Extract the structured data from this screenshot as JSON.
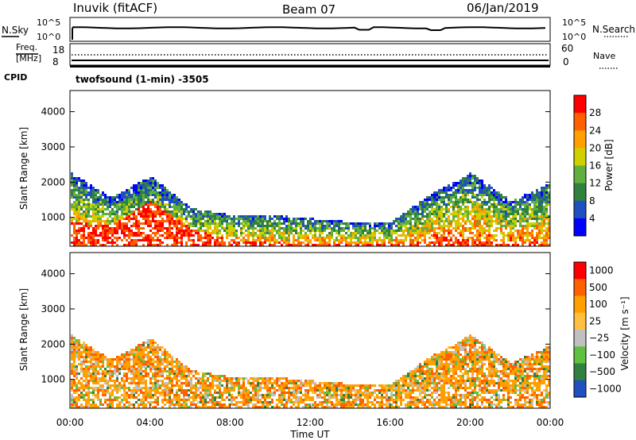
{
  "header": {
    "station": "Inuvik (fitACF)",
    "beam": "Beam 07",
    "date": "06/Jan/2019"
  },
  "nsky_panel": {
    "left_label": "N.Sky",
    "left_ticks": [
      "10^5",
      "10^0"
    ],
    "right_label": "N.Search",
    "right_ticks": [
      "10^5",
      "10^0"
    ]
  },
  "freq_panel": {
    "left_label_line1": "Freq.",
    "left_label_line2": "[MHz]",
    "left_ticks": [
      "18",
      "8"
    ],
    "right_label": "Nave",
    "right_ticks": [
      "60",
      "0"
    ]
  },
  "cpid": {
    "label": "CPID",
    "program": "twofsound (1-min) -3505"
  },
  "x_axis": {
    "label": "Time UT",
    "ticks": [
      "00:00",
      "04:00",
      "08:00",
      "12:00",
      "16:00",
      "20:00",
      "00:00"
    ]
  },
  "colors": {
    "power": [
      "#0000ff",
      "#2050c0",
      "#308040",
      "#60b040",
      "#d0d000",
      "#ffa000",
      "#ff6000",
      "#ff0000"
    ],
    "velocity": [
      "#ff0000",
      "#ff6000",
      "#ffa000",
      "#ffc040",
      "#c0c0c0",
      "#60c040",
      "#308040",
      "#2050c0"
    ]
  },
  "chart_data": [
    {
      "type": "heatmap",
      "name": "power",
      "ylabel": "Slant Range [km]",
      "yticks": [
        "1000",
        "2000",
        "3000",
        "4000"
      ],
      "ylim": [
        180,
        4600
      ],
      "colorbar_label": "Power [dB]",
      "colorbar_ticks": [
        "4",
        "8",
        "12",
        "16",
        "20",
        "24",
        "28"
      ],
      "colorbar_range": [
        0,
        32
      ],
      "x_hours": [
        0,
        2,
        4,
        6,
        8,
        10,
        12,
        14,
        16,
        18,
        20,
        22,
        24
      ],
      "echo_top_km": [
        2300,
        1600,
        2200,
        1300,
        1100,
        1100,
        1000,
        900,
        900,
        1700,
        2300,
        1500,
        2000
      ],
      "strong_echo_top_km": [
        900,
        800,
        1500,
        700,
        400,
        300,
        300,
        300,
        300,
        400,
        400,
        300,
        300
      ]
    },
    {
      "type": "heatmap",
      "name": "velocity",
      "ylabel": "Slant Range [km]",
      "yticks": [
        "1000",
        "2000",
        "3000",
        "4000"
      ],
      "ylim": [
        180,
        4600
      ],
      "colorbar_label": "Velocity [m s⁻¹]",
      "colorbar_ticks": [
        "1000",
        "500",
        "100",
        "25",
        "−25",
        "−100",
        "−500",
        "−1000"
      ],
      "x_hours": [
        0,
        2,
        4,
        6,
        8,
        10,
        12,
        14,
        16,
        18,
        20,
        22,
        24
      ],
      "echo_top_km": [
        2300,
        1600,
        2200,
        1300,
        1100,
        1100,
        1000,
        900,
        900,
        1700,
        2300,
        1500,
        2000
      ]
    }
  ]
}
